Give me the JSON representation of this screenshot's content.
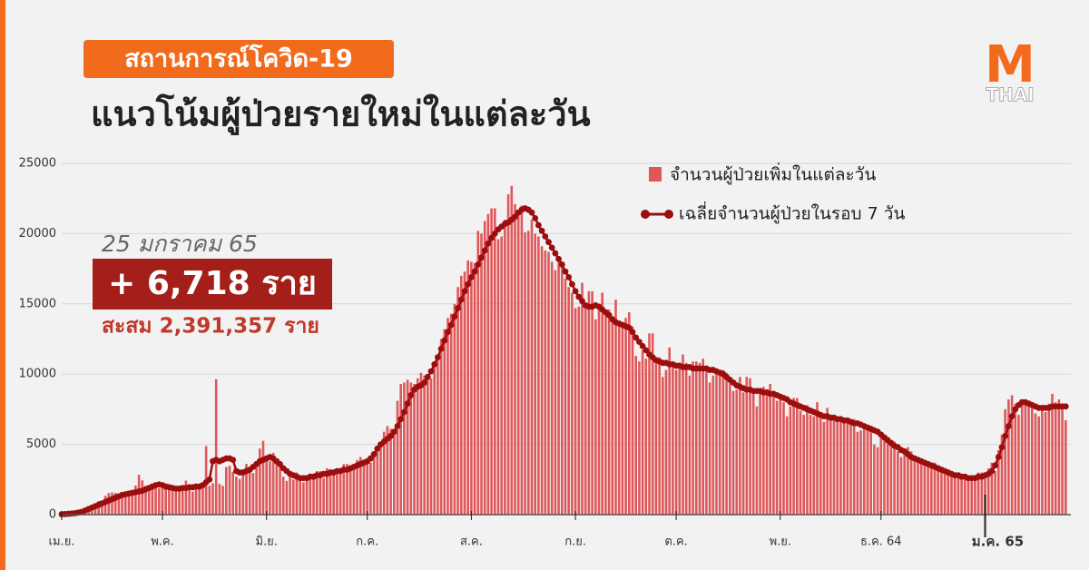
{
  "header": {
    "tag": "สถานการณ์โควิด-19",
    "title": "แนวโน้มผู้ป่วยรายใหม่ในแต่ละวัน"
  },
  "logo": {
    "mark": "M",
    "name": "THAI"
  },
  "highlight": {
    "date": "25 มกราคม 65",
    "new": "+ 6,718 ราย",
    "total": "สะสม 2,391,357 ราย"
  },
  "chart_data": {
    "type": "bar",
    "categories": [
      "เม.ย.",
      null,
      null,
      null,
      null,
      null,
      null,
      null,
      null,
      null,
      null,
      null,
      null,
      null,
      null,
      null,
      null,
      null,
      null,
      null,
      null,
      null,
      null,
      null,
      null,
      null,
      null,
      null,
      null,
      null,
      "พ.ค.",
      null,
      null,
      null,
      null,
      null,
      null,
      null,
      null,
      null,
      null,
      null,
      null,
      null,
      null,
      null,
      null,
      null,
      null,
      null,
      null,
      null,
      null,
      null,
      null,
      null,
      null,
      null,
      null,
      null,
      null,
      "มิ.ย.",
      null,
      null,
      null,
      null,
      null,
      null,
      null,
      null,
      null,
      null,
      null,
      null,
      null,
      null,
      null,
      null,
      null,
      null,
      null,
      null,
      null,
      null,
      null,
      null,
      null,
      null,
      null,
      null,
      null,
      "ก.ค.",
      null,
      null,
      null,
      null,
      null,
      null,
      null,
      null,
      null,
      null,
      null,
      null,
      null,
      null,
      null,
      null,
      null,
      null,
      null,
      null,
      null,
      null,
      null,
      null,
      null,
      null,
      null,
      null,
      null,
      null,
      "ส.ค.",
      null,
      null,
      null,
      null,
      null,
      null,
      null,
      null,
      null,
      null,
      null,
      null,
      null,
      null,
      null,
      null,
      null,
      null,
      null,
      null,
      null,
      null,
      null,
      null,
      null,
      null,
      null,
      null,
      null,
      null,
      "ก.ย.",
      null,
      null,
      null,
      null,
      null,
      null,
      null,
      null,
      null,
      null,
      null,
      null,
      null,
      null,
      null,
      null,
      null,
      null,
      null,
      null,
      null,
      null,
      null,
      null,
      null,
      null,
      null,
      null,
      null,
      "ต.ค.",
      null,
      null,
      null,
      null,
      null,
      null,
      null,
      null,
      null,
      null,
      null,
      null,
      null,
      null,
      null,
      null,
      null,
      null,
      null,
      null,
      null,
      null,
      null,
      null,
      null,
      null,
      null,
      null,
      null,
      null,
      "พ.ย.",
      null,
      null,
      null,
      null,
      null,
      null,
      null,
      null,
      null,
      null,
      null,
      null,
      null,
      null,
      null,
      null,
      null,
      null,
      null,
      null,
      null,
      null,
      null,
      null,
      null,
      null,
      null,
      null,
      null,
      "ธ.ค. 64",
      null,
      null,
      null,
      null,
      null,
      null,
      null,
      null,
      null,
      null,
      null,
      null,
      null,
      null,
      null,
      null,
      null,
      null,
      null,
      null,
      null,
      null,
      null,
      null,
      null,
      null,
      null,
      null,
      null,
      null,
      "ม.ค. 65",
      null,
      null,
      null,
      null,
      null,
      null,
      null,
      null,
      null,
      null,
      null,
      null,
      null,
      null,
      null,
      null,
      null,
      null,
      null,
      null,
      null,
      null,
      null,
      null
    ],
    "series": [
      {
        "name": "จำนวนผู้ป่วยเพิ่มในแต่ละวัน",
        "type": "bar",
        "color": "#e0575a",
        "values": [
          30,
          40,
          70,
          90,
          100,
          190,
          250,
          330,
          400,
          560,
          790,
          970,
          980,
          1340,
          1540,
          1580,
          1550,
          1390,
          1440,
          1460,
          1460,
          1450,
          2070,
          2840,
          2440,
          2050,
          2010,
          1920,
          2120,
          1880,
          1890,
          1940,
          2040,
          1760,
          1910,
          1900,
          2040,
          2420,
          2100,
          1630,
          1920,
          1980,
          2050,
          4880,
          2050,
          2230,
          9640,
          2190,
          2050,
          3390,
          3480,
          3050,
          2710,
          2540,
          3220,
          3610,
          3050,
          2960,
          3500,
          4700,
          5250,
          4100,
          3800,
          4400,
          3600,
          3400,
          2700,
          2400,
          2700,
          2500,
          3000,
          2700,
          2300,
          2400,
          2700,
          2700,
          3100,
          3100,
          2600,
          3300,
          3100,
          3200,
          3200,
          3000,
          3600,
          3600,
          3200,
          3500,
          3900,
          4100,
          3800,
          4000,
          3700,
          4200,
          4800,
          5200,
          5900,
          6300,
          6100,
          5700,
          8100,
          9300,
          9400,
          9600,
          9400,
          9300,
          9700,
          10100,
          9900,
          9700,
          9700,
          10600,
          11300,
          12500,
          13200,
          14000,
          14300,
          15000,
          16200,
          17000,
          17300,
          18100,
          18000,
          17900,
          20200,
          20000,
          20900,
          21400,
          21800,
          21800,
          19600,
          19800,
          21000,
          22800,
          23400,
          22100,
          21400,
          22000,
          20100,
          20200,
          21000,
          20000,
          19800,
          19100,
          18800,
          18700,
          18000,
          17400,
          18000,
          17600,
          16800,
          16200,
          15800,
          14700,
          14800,
          16500,
          15100,
          15900,
          15900,
          13900,
          14800,
          15800,
          14400,
          14600,
          14100,
          15300,
          13700,
          13700,
          14000,
          14400,
          13400,
          11300,
          10900,
          11700,
          11100,
          12900,
          12900,
          10800,
          11200,
          9800,
          10300,
          11900,
          10900,
          10300,
          10700,
          11400,
          10800,
          9900,
          10900,
          10900,
          10800,
          11100,
          10500,
          9400,
          9900,
          10100,
          10200,
          10300,
          10100,
          9800,
          8800,
          8900,
          9800,
          8700,
          9800,
          9700,
          8600,
          7700,
          9000,
          9100,
          8700,
          9300,
          8700,
          8100,
          8200,
          8000,
          7000,
          7700,
          8300,
          8300,
          7400,
          7100,
          7800,
          7100,
          7000,
          8000,
          7000,
          6600,
          7600,
          7000,
          7000,
          6900,
          6700,
          6900,
          6600,
          6700,
          6800,
          5900,
          6000,
          6400,
          6200,
          5900,
          5000,
          4800,
          5700,
          5300,
          5100,
          5000,
          5200,
          4500,
          4100,
          4700,
          4800,
          4500,
          4100,
          3900,
          3900,
          3700,
          3600,
          3500,
          3700,
          3500,
          3300,
          3300,
          3000,
          3000,
          3000,
          2700,
          2800,
          2600,
          2500,
          2500,
          2400,
          3000,
          3000,
          2700,
          3300,
          3700,
          3100,
          4600,
          5700,
          7500,
          8200,
          8500,
          7900,
          7100,
          8000,
          8200,
          8100,
          7900,
          7200,
          7000,
          7700,
          7300,
          7900,
          8600,
          8000,
          8200,
          7500,
          6718
        ]
      },
      {
        "name": "เฉลี่ยจำนวนผู้ป่วยในรอบ 7 วัน",
        "type": "line",
        "color": "#9b0e0e",
        "values": [
          30,
          40,
          60,
          80,
          100,
          150,
          200,
          300,
          400,
          500,
          600,
          700,
          800,
          900,
          1000,
          1100,
          1200,
          1300,
          1400,
          1450,
          1500,
          1550,
          1600,
          1650,
          1700,
          1800,
          1900,
          2000,
          2100,
          2150,
          2100,
          2000,
          1950,
          1900,
          1850,
          1850,
          1900,
          1900,
          1950,
          1950,
          2000,
          2000,
          2100,
          2300,
          2500,
          3800,
          3900,
          3800,
          3900,
          4000,
          4000,
          3900,
          3100,
          3000,
          3000,
          3100,
          3200,
          3400,
          3600,
          3800,
          3900,
          4000,
          4100,
          4000,
          3800,
          3600,
          3300,
          3100,
          2900,
          2800,
          2700,
          2600,
          2600,
          2600,
          2700,
          2700,
          2800,
          2800,
          2900,
          2900,
          3000,
          3000,
          3100,
          3100,
          3200,
          3200,
          3300,
          3400,
          3500,
          3600,
          3700,
          3800,
          4000,
          4300,
          4700,
          5000,
          5200,
          5400,
          5600,
          5900,
          6300,
          6800,
          7300,
          7900,
          8500,
          8900,
          9100,
          9200,
          9400,
          9800,
          10200,
          10700,
          11200,
          11800,
          12400,
          13000,
          13500,
          14100,
          14700,
          15300,
          15900,
          16400,
          16900,
          17300,
          17800,
          18300,
          18800,
          19300,
          19700,
          20000,
          20300,
          20500,
          20700,
          20800,
          21000,
          21200,
          21500,
          21700,
          21800,
          21700,
          21500,
          21100,
          20600,
          20200,
          19800,
          19400,
          19000,
          18600,
          18200,
          17800,
          17300,
          16900,
          16400,
          15900,
          15500,
          15200,
          14900,
          14800,
          14800,
          14900,
          14800,
          14600,
          14400,
          14200,
          13900,
          13700,
          13600,
          13500,
          13400,
          13300,
          13000,
          12600,
          12300,
          12000,
          11700,
          11400,
          11200,
          11000,
          10900,
          10800,
          10800,
          10700,
          10700,
          10600,
          10600,
          10500,
          10500,
          10500,
          10400,
          10400,
          10400,
          10400,
          10400,
          10300,
          10300,
          10200,
          10100,
          10000,
          9800,
          9600,
          9400,
          9200,
          9100,
          9000,
          8900,
          8900,
          8800,
          8800,
          8800,
          8700,
          8700,
          8600,
          8600,
          8500,
          8400,
          8300,
          8200,
          8000,
          7900,
          7800,
          7700,
          7600,
          7500,
          7400,
          7300,
          7200,
          7100,
          7000,
          7000,
          6900,
          6900,
          6800,
          6800,
          6700,
          6700,
          6600,
          6500,
          6500,
          6400,
          6300,
          6200,
          6100,
          6000,
          5900,
          5700,
          5500,
          5300,
          5100,
          4900,
          4800,
          4600,
          4500,
          4300,
          4100,
          4000,
          3900,
          3800,
          3700,
          3600,
          3500,
          3400,
          3300,
          3200,
          3100,
          3000,
          2900,
          2800,
          2800,
          2700,
          2700,
          2600,
          2600,
          2600,
          2700,
          2700,
          2800,
          2900,
          3100,
          3500,
          4100,
          4800,
          5600,
          6300,
          7000,
          7500,
          7800,
          8000,
          8000,
          7900,
          7800,
          7700,
          7600,
          7600,
          7600,
          7600,
          7700,
          7700,
          7700,
          7700,
          7700
        ]
      }
    ],
    "ylim": [
      0,
      25000
    ],
    "yticks": [
      0,
      5000,
      10000,
      15000,
      20000,
      25000
    ],
    "grid": true,
    "legend": "top-right"
  }
}
